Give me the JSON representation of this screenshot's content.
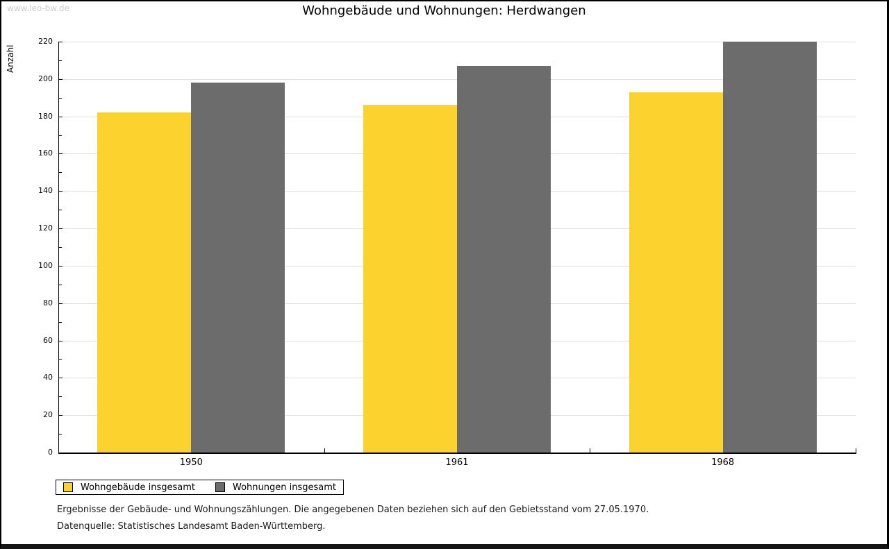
{
  "watermark": "www.leo-bw.de",
  "chart_data": {
    "type": "bar",
    "title": "Wohngebäude und Wohnungen: Herdwangen",
    "ylabel": "Anzahl",
    "xlabel": "",
    "categories": [
      "1950",
      "1961",
      "1968"
    ],
    "series": [
      {
        "name": "Wohngebäude insgesamt",
        "color": "#FCD32E",
        "values": [
          182,
          186,
          193
        ]
      },
      {
        "name": "Wohnungen insgesamt",
        "color": "#6C6C6C",
        "values": [
          198,
          207,
          220
        ]
      }
    ],
    "ylim": [
      0,
      220
    ],
    "ytick_major": 20,
    "ytick_minor": 10,
    "grid": true,
    "legend_position": "bottom-left"
  },
  "footnotes": {
    "line1": "Ergebnisse der Gebäude- und Wohnungszählungen. Die angegebenen Daten beziehen sich auf den Gebietsstand vom 27.05.1970.",
    "line2": "Datenquelle: Statistisches Landesamt Baden-Württemberg."
  },
  "colors": {
    "grid": "#E0E0E0",
    "axis": "#000000",
    "watermark": "#CCCCCC",
    "title": "#000000"
  }
}
